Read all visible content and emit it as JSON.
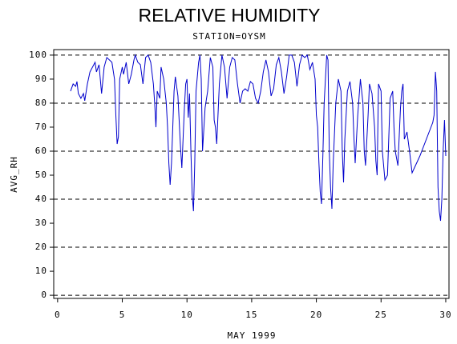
{
  "chart_data": {
    "type": "line",
    "title": "RELATIVE HUMIDITY",
    "subtitle": "STATION=OYSM",
    "ylabel": "AVG_RH",
    "xlabel": "MAY 1999",
    "xlim": [
      -0.3,
      30.25
    ],
    "ylim": [
      -1.3,
      102.3
    ],
    "xticks": [
      0,
      5,
      10,
      15,
      20,
      25,
      30
    ],
    "yticks": [
      0,
      10,
      20,
      30,
      40,
      50,
      60,
      70,
      80,
      90,
      100
    ],
    "ygrid": [
      0,
      20,
      40,
      60,
      80,
      100
    ],
    "grid": true,
    "series": [
      {
        "name": "AVG_RH",
        "color": "#0000cc",
        "x": [
          1.0,
          1.2,
          1.4,
          1.5,
          1.6,
          1.8,
          2.0,
          2.1,
          2.3,
          2.5,
          2.7,
          2.9,
          3.0,
          3.2,
          3.4,
          3.6,
          3.8,
          4.0,
          4.2,
          4.4,
          4.5,
          4.6,
          4.7,
          4.8,
          5.0,
          5.1,
          5.3,
          5.5,
          5.7,
          5.9,
          6.0,
          6.2,
          6.4,
          6.6,
          6.8,
          7.0,
          7.2,
          7.4,
          7.5,
          7.6,
          7.7,
          7.9,
          8.0,
          8.2,
          8.4,
          8.5,
          8.6,
          8.7,
          8.8,
          9.0,
          9.1,
          9.3,
          9.5,
          9.6,
          9.8,
          9.9,
          10.0,
          10.1,
          10.2,
          10.3,
          10.4,
          10.5,
          10.6,
          10.7,
          10.9,
          11.0,
          11.1,
          11.2,
          11.4,
          11.6,
          11.8,
          12.0,
          12.1,
          12.2,
          12.3,
          12.5,
          12.7,
          12.9,
          13.1,
          13.3,
          13.5,
          13.7,
          13.9,
          14.1,
          14.3,
          14.5,
          14.7,
          14.9,
          15.1,
          15.3,
          15.5,
          15.7,
          15.9,
          16.1,
          16.3,
          16.5,
          16.7,
          16.9,
          17.1,
          17.3,
          17.5,
          17.7,
          17.9,
          18.1,
          18.3,
          18.5,
          18.7,
          18.9,
          19.1,
          19.3,
          19.5,
          19.7,
          19.9,
          20.0,
          20.1,
          20.2,
          20.3,
          20.4,
          20.5,
          20.6,
          20.8,
          20.9,
          21.0,
          21.1,
          21.2,
          21.3,
          21.5,
          21.7,
          21.9,
          22.0,
          22.1,
          22.2,
          22.4,
          22.6,
          22.8,
          22.9,
          23.0,
          23.2,
          23.4,
          23.6,
          23.7,
          23.8,
          24.0,
          24.1,
          24.3,
          24.5,
          24.6,
          24.7,
          24.8,
          25.0,
          25.1,
          25.3,
          25.5,
          25.7,
          25.9,
          26.0,
          26.1,
          26.3,
          26.5,
          26.6,
          26.7,
          26.8,
          27.0,
          27.2,
          27.4,
          28.0,
          29.0,
          29.1,
          29.2,
          29.3,
          29.4,
          29.5,
          29.6,
          29.7,
          29.8,
          29.9,
          30.0
        ],
        "values": [
          85,
          88,
          87,
          89,
          84,
          82,
          84,
          81,
          88,
          93,
          95,
          97,
          93,
          96,
          84,
          95,
          99,
          98,
          97,
          90,
          75,
          63,
          66,
          90,
          95,
          92,
          97,
          88,
          92,
          98,
          100,
          97,
          96,
          88,
          99,
          100,
          97,
          88,
          80,
          70,
          85,
          82,
          95,
          90,
          80,
          70,
          55,
          46,
          55,
          85,
          91,
          83,
          62,
          53,
          78,
          88,
          90,
          74,
          84,
          60,
          42,
          35,
          55,
          85,
          97,
          100,
          90,
          60,
          78,
          85,
          99,
          95,
          73,
          70,
          63,
          88,
          100,
          95,
          82,
          95,
          99,
          98,
          88,
          80,
          85,
          86,
          85,
          89,
          88,
          82,
          80,
          85,
          93,
          98,
          93,
          83,
          86,
          96,
          99,
          93,
          84,
          91,
          100,
          100,
          97,
          87,
          96,
          100,
          99,
          100,
          94,
          97,
          90,
          75,
          70,
          55,
          43,
          38,
          58,
          80,
          100,
          98,
          60,
          45,
          36,
          55,
          80,
          90,
          85,
          60,
          47,
          65,
          85,
          89,
          80,
          66,
          55,
          75,
          90,
          80,
          60,
          54,
          75,
          88,
          84,
          70,
          56,
          50,
          88,
          85,
          60,
          48,
          50,
          82,
          85,
          70,
          60,
          54,
          78,
          85,
          88,
          65,
          68,
          60,
          51,
          58,
          72,
          75,
          93,
          85,
          45,
          35,
          31,
          40,
          60,
          73,
          58
        ]
      }
    ]
  }
}
